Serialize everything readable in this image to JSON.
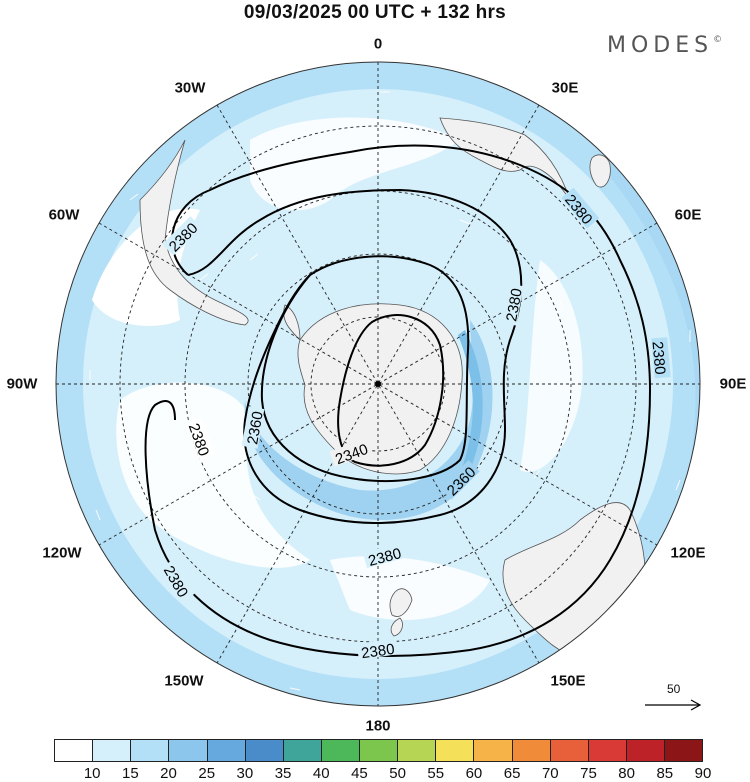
{
  "title": "09/03/2025  00 UTC  + 132 hrs",
  "brand": {
    "name": "MODES",
    "mark": "©"
  },
  "longitude_labels": {
    "lon_0": "0",
    "lon_30e": "30E",
    "lon_60e": "60E",
    "lon_90e": "90E",
    "lon_120e": "120E",
    "lon_150e": "150E",
    "lon_180": "180",
    "lon_150w": "150W",
    "lon_120w": "120W",
    "lon_90w": "90W",
    "lon_60w": "60W",
    "lon_30w": "30W"
  },
  "contour_labels": [
    {
      "id": "c1",
      "text": "2380"
    },
    {
      "id": "c2",
      "text": "2380"
    },
    {
      "id": "c3",
      "text": "2380"
    },
    {
      "id": "c4",
      "text": "2380"
    },
    {
      "id": "c5",
      "text": "2380"
    },
    {
      "id": "c6",
      "text": "2380"
    },
    {
      "id": "c7",
      "text": "2380"
    },
    {
      "id": "c8",
      "text": "2380"
    },
    {
      "id": "c9",
      "text": "2360"
    },
    {
      "id": "c10",
      "text": "2360"
    },
    {
      "id": "c11",
      "text": "2340"
    }
  ],
  "reference_vector": {
    "label": "50"
  },
  "colorbar": {
    "ticks": [
      "10",
      "15",
      "20",
      "25",
      "30",
      "35",
      "40",
      "45",
      "50",
      "55",
      "60",
      "65",
      "70",
      "75",
      "80",
      "85",
      "90"
    ],
    "colors": [
      "#ffffff",
      "#d6f0fb",
      "#b4e0f7",
      "#8cc6ec",
      "#66a9de",
      "#4a8cc9",
      "#3fa59a",
      "#4cb85a",
      "#7cc64e",
      "#b7d554",
      "#f5e05a",
      "#f6b347",
      "#f08b3a",
      "#e8603a",
      "#d93a35",
      "#bd2229",
      "#8c1518"
    ]
  },
  "map": {
    "projection": "south polar stereographic",
    "pole": "south",
    "land_color": "#f1f1f1",
    "coast_color": "#555555",
    "shading_levels_visible": [
      "10-15",
      "15-20",
      "20-25"
    ]
  }
}
